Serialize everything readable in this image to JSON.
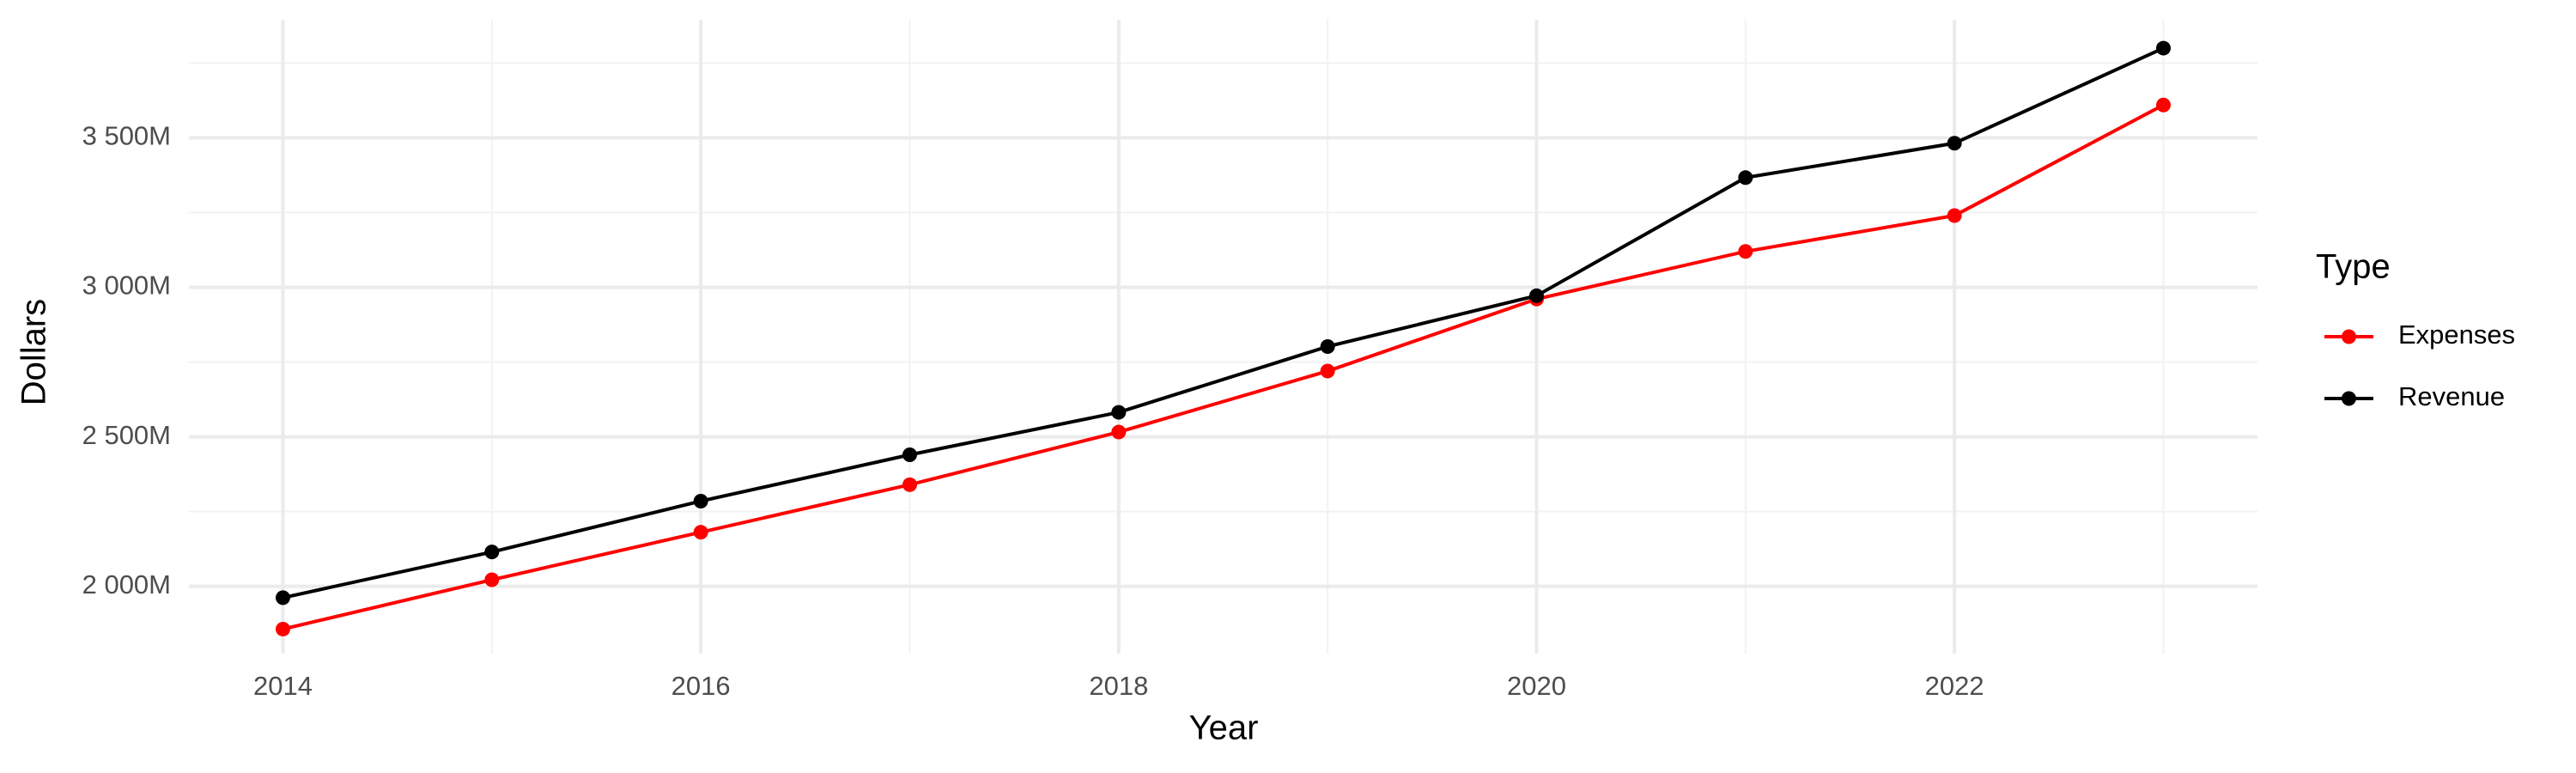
{
  "chart_data": {
    "type": "line",
    "x_label": "Year",
    "y_label": "Dollars",
    "x": [
      2014,
      2015,
      2016,
      2017,
      2018,
      2019,
      2020,
      2021,
      2022,
      2023
    ],
    "series": [
      {
        "name": "Expenses",
        "color": "#ff0000",
        "values": [
          1857,
          2022,
          2181,
          2340,
          2516,
          2720,
          2961,
          3120,
          3240,
          3610
        ]
      },
      {
        "name": "Revenue",
        "color": "#000000",
        "values": [
          1962,
          2115,
          2285,
          2440,
          2582,
          2802,
          2972,
          3367,
          3482,
          3800
        ]
      }
    ],
    "xlim": [
      2013.55,
      2023.45
    ],
    "xticks": [
      2014,
      2016,
      2018,
      2020,
      2022
    ],
    "x_minor_ticks": [
      2015,
      2017,
      2019,
      2021,
      2023
    ],
    "ylim": [
      1775,
      3895
    ],
    "yticks": [
      {
        "value": 2000,
        "label": "2 000M"
      },
      {
        "value": 2500,
        "label": "2 500M"
      },
      {
        "value": 3000,
        "label": "3 000M"
      },
      {
        "value": 3500,
        "label": "3 500M"
      }
    ],
    "y_minor_ticks": [
      2250,
      2750,
      3250,
      3750
    ],
    "grid": true,
    "legend": {
      "title": "Type",
      "position": "right"
    }
  }
}
